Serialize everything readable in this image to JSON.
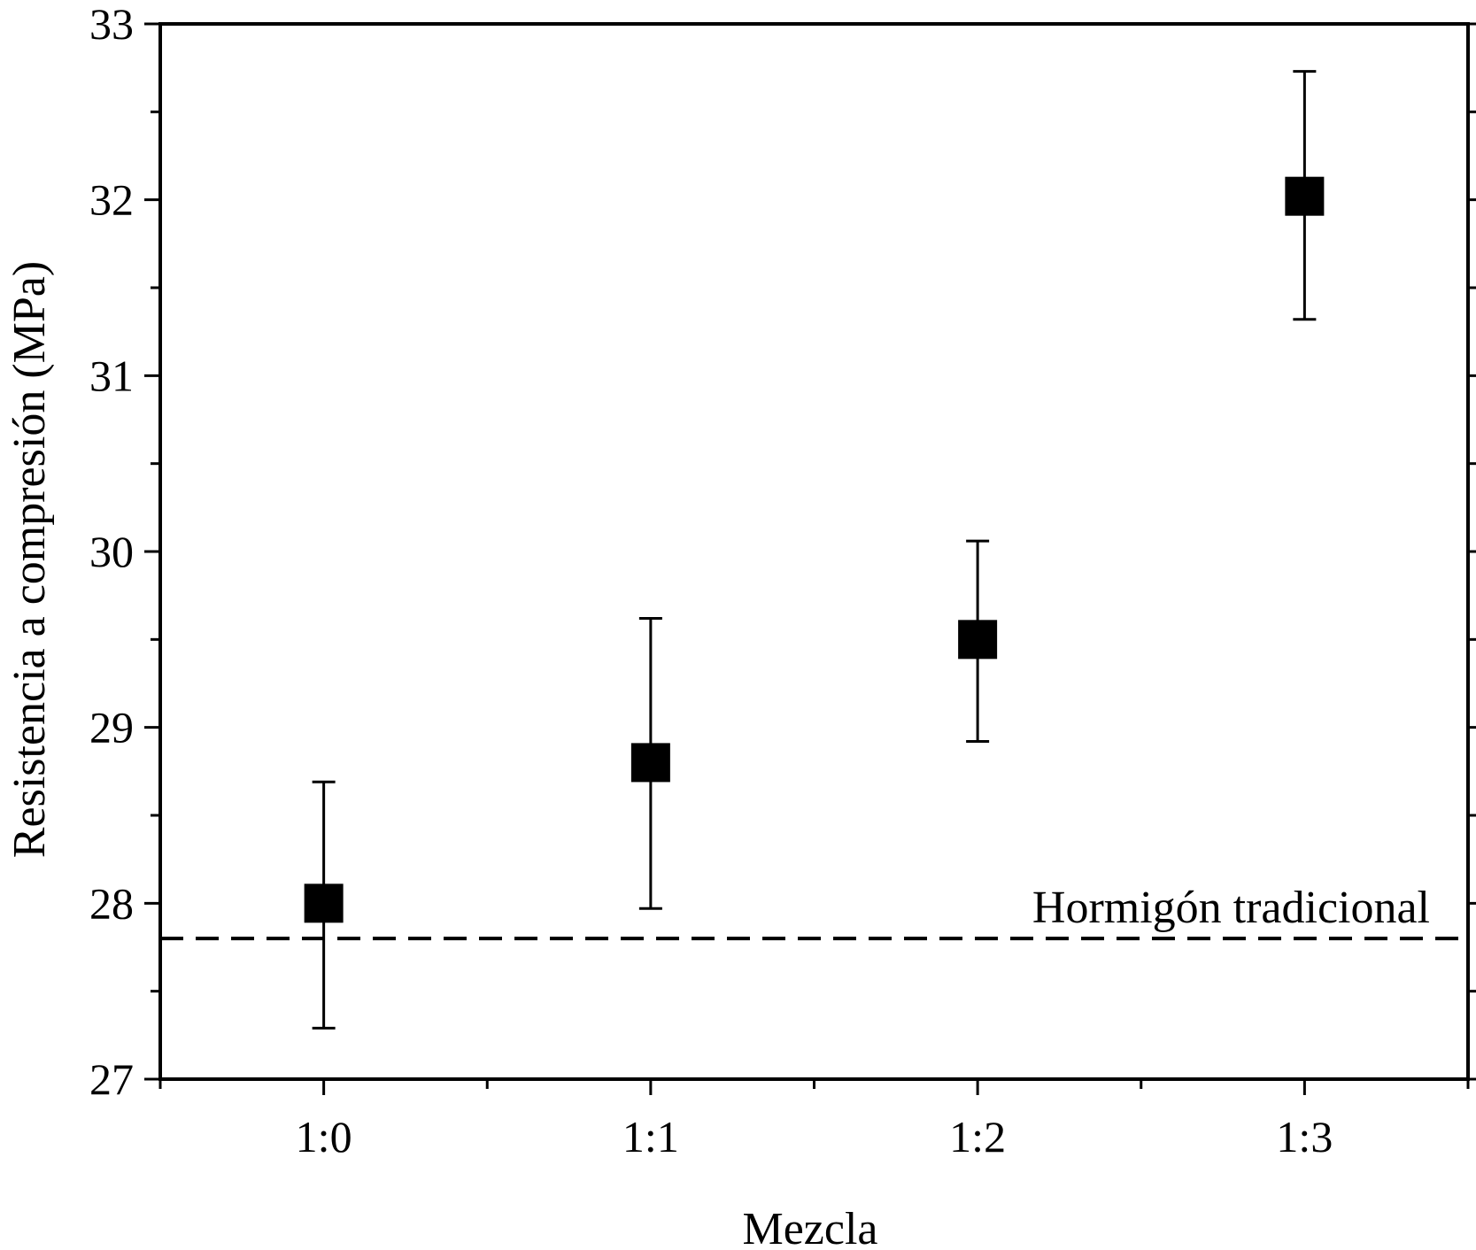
{
  "chart_data": {
    "type": "scatter",
    "title": "",
    "xlabel": "Mezcla",
    "ylabel": "Resistencia a compresión (MPa)",
    "categories": [
      "1:0",
      "1:1",
      "1:2",
      "1:3"
    ],
    "series": [
      {
        "values": [
          28.0,
          28.8,
          29.5,
          32.02
        ],
        "err_low": [
          27.29,
          27.97,
          28.92,
          31.32
        ],
        "err_high": [
          28.69,
          29.62,
          30.06,
          32.73
        ]
      }
    ],
    "ylim": [
      27,
      33
    ],
    "yticks": [
      27,
      28,
      29,
      30,
      31,
      32,
      33
    ],
    "xlim": [
      0.5,
      4.5
    ],
    "reference_line": {
      "value": 27.8,
      "label": "Hormigón tradicional",
      "style": "dashed"
    },
    "grid": false,
    "legend": "none",
    "colors": {
      "marker": "#000000",
      "axis": "#000000"
    }
  }
}
